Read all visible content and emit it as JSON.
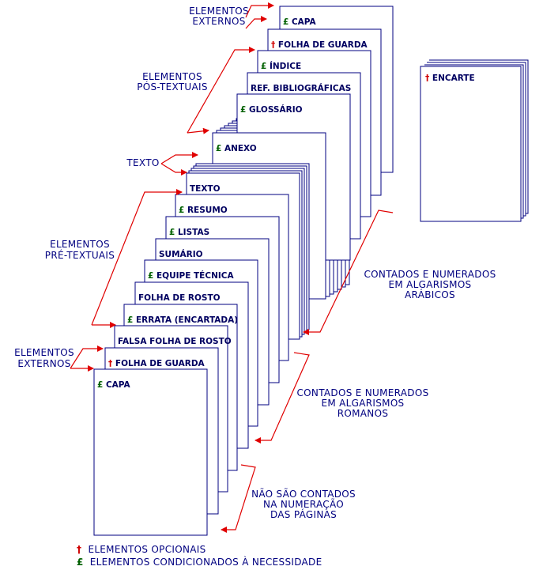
{
  "symbols": {
    "optional": "†",
    "conditional": "£",
    "optional_color": "#d00000",
    "conditional_color": "#006000"
  },
  "colors": {
    "text": "#000080",
    "arrow": "#e00000",
    "page_border": "#000080"
  },
  "pages": [
    {
      "key": "capa_externa",
      "label": "CAPA",
      "symbol": "conditional"
    },
    {
      "key": "folha_de_guarda_externa",
      "label": "FOLHA DE GUARDA",
      "symbol": "optional"
    },
    {
      "key": "falsa_folha_de_rosto",
      "label": "FALSA FOLHA DE ROSTO",
      "symbol": ""
    },
    {
      "key": "errata",
      "label": "ERRATA (ENCARTADA)",
      "symbol": "conditional"
    },
    {
      "key": "folha_de_rosto",
      "label": "FOLHA DE ROSTO",
      "symbol": ""
    },
    {
      "key": "equipe_tecnica",
      "label": "EQUIPE TÉCNICA",
      "symbol": "conditional"
    },
    {
      "key": "sumario",
      "label": "SUMÁRIO",
      "symbol": ""
    },
    {
      "key": "listas",
      "label": "LISTAS",
      "symbol": "conditional"
    },
    {
      "key": "resumo",
      "label": "RESUMO",
      "symbol": "conditional"
    },
    {
      "key": "texto",
      "label": "TEXTO",
      "symbol": ""
    },
    {
      "key": "anexo",
      "label": "ANEXO",
      "symbol": "conditional"
    },
    {
      "key": "glossario",
      "label": "GLOSSÁRIO",
      "symbol": "conditional"
    },
    {
      "key": "ref_bibliograficas",
      "label": "REF. BIBLIOGRÁFICAS",
      "symbol": ""
    },
    {
      "key": "indice",
      "label": "ÍNDICE",
      "symbol": "conditional"
    },
    {
      "key": "folha_de_guarda_final",
      "label": "FOLHA DE GUARDA",
      "symbol": "optional"
    },
    {
      "key": "capa_final",
      "label": "CAPA",
      "symbol": "conditional"
    }
  ],
  "insert": {
    "label": "ENCARTE",
    "symbol": "optional"
  },
  "groups": {
    "externos_top": [
      "ELEMENTOS",
      "EXTERNOS"
    ],
    "pos_textuais": [
      "ELEMENTOS",
      "PÓS-TEXTUAIS"
    ],
    "texto": [
      "TEXTO"
    ],
    "pre_textuais": [
      "ELEMENTOS",
      "PRÉ-TEXTUAIS"
    ],
    "externos_bottom": [
      "ELEMENTOS",
      "EXTERNOS"
    ]
  },
  "counting": {
    "arabic": [
      "CONTADOS E NUMERADOS",
      "EM ALGARISMOS",
      "ARÁBICOS"
    ],
    "roman": [
      "CONTADOS E NUMERADOS",
      "EM ALGARISMOS",
      "ROMANOS"
    ],
    "not_counted": [
      "NÃO SÃO CONTADOS",
      "NA NUMERAÇÃO",
      "DAS PÁGINAS"
    ]
  },
  "legend": {
    "optional_text": "ELEMENTOS OPCIONAIS",
    "conditional_text": "ELEMENTOS CONDICIONADOS À NECESSIDADE"
  }
}
